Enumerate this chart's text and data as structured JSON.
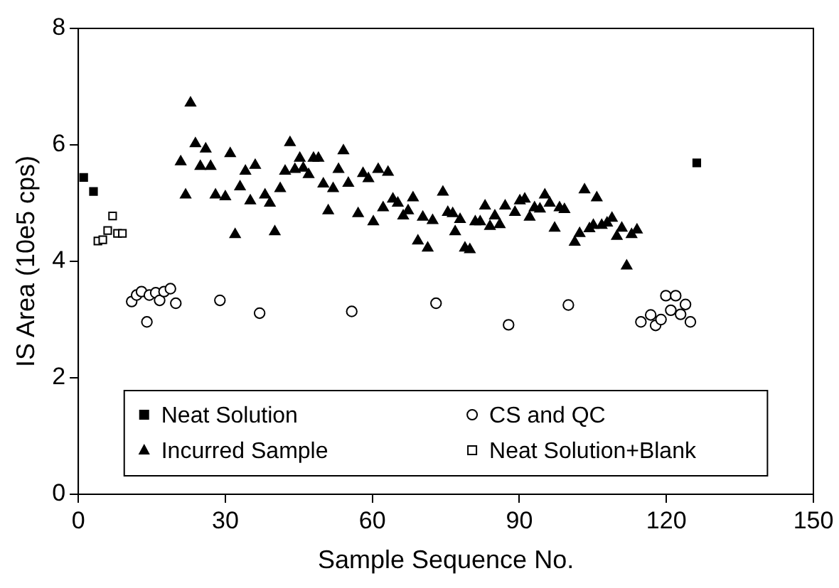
{
  "chart_data": {
    "type": "scatter",
    "xlabel": "Sample Sequence No.",
    "ylabel": "IS Area (10e5 cps)",
    "xlim": [
      0,
      150
    ],
    "xticks": [
      0,
      30,
      60,
      90,
      120,
      150
    ],
    "ylim": [
      0,
      8
    ],
    "yticks": [
      0,
      2,
      4,
      6,
      8
    ],
    "grid": false,
    "legend": "bottom",
    "series": [
      {
        "name": "Neat Solution",
        "color": "#000000",
        "marker": "square",
        "x": [
          1.1,
          3.1,
          126.2
        ],
        "values": [
          5.44,
          5.2,
          5.69
        ]
      },
      {
        "name": "CS and QC",
        "color": "#ffffff",
        "marker": "circle",
        "x": [
          10.9,
          11.9,
          12.9,
          14.5,
          15.8,
          16.6,
          17.5,
          18.8,
          19.9,
          14.0,
          28.9,
          37.0,
          55.8,
          73.0,
          87.8,
          100.0,
          114.8,
          116.8,
          117.8,
          118.9,
          119.9,
          121.9,
          120.9,
          122.9,
          123.9,
          124.9
        ],
        "values": [
          3.31,
          3.42,
          3.48,
          3.42,
          3.46,
          3.33,
          3.48,
          3.53,
          3.28,
          2.96,
          3.33,
          3.11,
          3.14,
          3.28,
          2.91,
          3.25,
          2.96,
          3.08,
          2.9,
          3.0,
          3.41,
          3.41,
          3.16,
          3.09,
          3.26,
          2.96
        ]
      },
      {
        "name": "Incurred Sample",
        "color": "#000000",
        "marker": "triangle",
        "x": [
          20.9,
          21.9,
          22.9,
          23.9,
          24.9,
          26.0,
          27.0,
          28.0,
          30.0,
          31.0,
          32.0,
          33.0,
          34.1,
          35.1,
          36.1,
          38.1,
          39.1,
          40.1,
          41.2,
          42.2,
          43.2,
          44.2,
          45.2,
          45.9,
          47.0,
          48.0,
          49.0,
          50.0,
          51.0,
          52.0,
          53.1,
          54.1,
          55.1,
          57.1,
          58.1,
          59.2,
          60.2,
          61.2,
          62.2,
          63.2,
          64.2,
          65.2,
          66.3,
          67.3,
          68.3,
          69.3,
          70.3,
          71.3,
          72.3,
          74.4,
          75.4,
          76.4,
          76.9,
          77.9,
          78.9,
          79.9,
          81.0,
          82.0,
          83.0,
          84.0,
          85.0,
          86.0,
          87.1,
          89.1,
          90.1,
          91.1,
          92.1,
          93.1,
          94.2,
          95.2,
          96.2,
          97.2,
          98.2,
          99.2,
          101.3,
          102.3,
          103.3,
          104.3,
          105.1,
          105.8,
          106.8,
          107.9,
          108.9,
          109.9,
          110.9,
          111.9,
          112.9,
          114.0
        ],
        "values": [
          5.71,
          5.14,
          6.72,
          6.02,
          5.63,
          5.93,
          5.63,
          5.14,
          5.11,
          5.85,
          4.46,
          5.28,
          5.55,
          5.04,
          5.65,
          5.14,
          5.0,
          4.51,
          5.25,
          5.55,
          6.04,
          5.58,
          5.77,
          5.6,
          5.49,
          5.77,
          5.77,
          5.33,
          4.87,
          5.25,
          5.58,
          5.9,
          5.34,
          4.82,
          5.51,
          5.42,
          4.68,
          5.58,
          4.92,
          5.53,
          5.07,
          5.0,
          4.78,
          4.87,
          5.09,
          4.35,
          4.76,
          4.23,
          4.7,
          5.19,
          4.84,
          4.82,
          4.51,
          4.72,
          4.23,
          4.2,
          4.68,
          4.68,
          4.95,
          4.6,
          4.78,
          4.63,
          4.95,
          4.84,
          5.04,
          5.07,
          4.76,
          4.92,
          4.9,
          5.14,
          5.0,
          4.57,
          4.92,
          4.89,
          4.33,
          4.48,
          5.23,
          4.56,
          4.62,
          5.09,
          4.62,
          4.66,
          4.74,
          4.43,
          4.57,
          3.92,
          4.46,
          4.54
        ]
      },
      {
        "name": "Neat Solution+Blank",
        "color": "#ffffff",
        "marker": "square",
        "x": [
          4,
          5,
          6,
          7,
          8,
          9
        ],
        "values": [
          4.35,
          4.37,
          4.53,
          4.78,
          4.48,
          4.48
        ]
      }
    ]
  }
}
